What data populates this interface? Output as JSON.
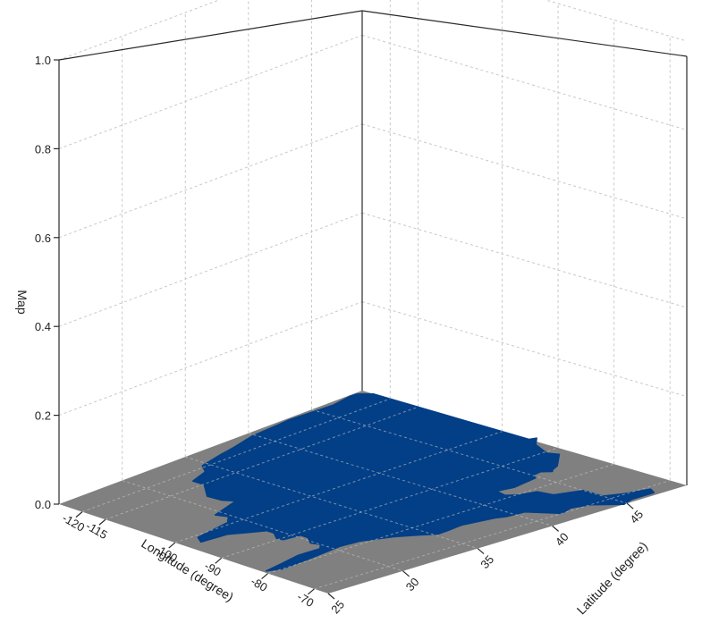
{
  "chart_data": {
    "type": "surface3d",
    "title": "",
    "xlabel": "Longitude (degree)",
    "ylabel": "Latitude (degree)",
    "zlabel": "Map",
    "x_ticks": [
      "-120",
      "-115",
      "-100",
      "-90",
      "-80",
      "-70"
    ],
    "y_ticks": [
      "25",
      "30",
      "35",
      "40",
      "45"
    ],
    "z_ticks": [
      "0.0",
      "0.2",
      "0.4",
      "0.6",
      "0.8",
      "1.0"
    ],
    "xlim": [
      -125,
      -67
    ],
    "ylim": [
      25,
      49
    ],
    "zlim": [
      0,
      1
    ],
    "z_value": 0,
    "region": "Contiguous United States",
    "colors": {
      "land": "#033f86",
      "base": "#808080",
      "grid": "#c8c8c8"
    },
    "outline": [
      [
        -124.6,
        48.4
      ],
      [
        -123.0,
        49.0
      ],
      [
        -95.2,
        49.0
      ],
      [
        -94.8,
        49.4
      ],
      [
        -93.0,
        48.6
      ],
      [
        -89.5,
        48.0
      ],
      [
        -88.0,
        48.3
      ],
      [
        -84.8,
        46.9
      ],
      [
        -84.1,
        46.3
      ],
      [
        -83.6,
        46.1
      ],
      [
        -84.6,
        45.7
      ],
      [
        -85.6,
        45.0
      ],
      [
        -86.4,
        44.4
      ],
      [
        -86.2,
        43.0
      ],
      [
        -86.6,
        41.8
      ],
      [
        -87.5,
        41.7
      ],
      [
        -87.9,
        43.0
      ],
      [
        -87.6,
        44.5
      ],
      [
        -87.0,
        45.5
      ],
      [
        -86.0,
        45.9
      ],
      [
        -85.0,
        46.1
      ],
      [
        -84.7,
        45.8
      ],
      [
        -84.4,
        45.1
      ],
      [
        -83.3,
        44.8
      ],
      [
        -82.5,
        43.0
      ],
      [
        -83.1,
        42.0
      ],
      [
        -81.0,
        41.8
      ],
      [
        -79.8,
        42.3
      ],
      [
        -79.0,
        43.3
      ],
      [
        -76.5,
        43.5
      ],
      [
        -75.0,
        45.0
      ],
      [
        -71.5,
        45.0
      ],
      [
        -70.3,
        45.9
      ],
      [
        -69.2,
        47.4
      ],
      [
        -67.8,
        47.1
      ],
      [
        -67.8,
        45.6
      ],
      [
        -67.0,
        44.8
      ],
      [
        -70.0,
        43.6
      ],
      [
        -70.8,
        42.6
      ],
      [
        -70.0,
        41.7
      ],
      [
        -71.5,
        41.3
      ],
      [
        -74.0,
        40.6
      ],
      [
        -74.3,
        39.5
      ],
      [
        -75.0,
        38.9
      ],
      [
        -76.0,
        37.0
      ],
      [
        -75.6,
        35.9
      ],
      [
        -75.5,
        35.2
      ],
      [
        -77.0,
        34.5
      ],
      [
        -79.0,
        33.4
      ],
      [
        -81.0,
        31.8
      ],
      [
        -81.4,
        30.5
      ],
      [
        -80.5,
        28.0
      ],
      [
        -80.0,
        26.0
      ],
      [
        -81.0,
        25.2
      ],
      [
        -81.8,
        26.5
      ],
      [
        -82.8,
        28.0
      ],
      [
        -82.7,
        29.5
      ],
      [
        -84.0,
        30.0
      ],
      [
        -85.5,
        29.8
      ],
      [
        -87.5,
        30.3
      ],
      [
        -89.0,
        30.3
      ],
      [
        -89.4,
        29.2
      ],
      [
        -90.5,
        29.1
      ],
      [
        -92.5,
        29.6
      ],
      [
        -94.0,
        29.6
      ],
      [
        -95.3,
        28.8
      ],
      [
        -97.0,
        27.8
      ],
      [
        -97.4,
        26.0
      ],
      [
        -99.2,
        26.4
      ],
      [
        -100.7,
        29.1
      ],
      [
        -102.5,
        29.8
      ],
      [
        -104.4,
        29.5
      ],
      [
        -106.5,
        31.8
      ],
      [
        -108.2,
        31.4
      ],
      [
        -111.0,
        31.3
      ],
      [
        -114.8,
        32.5
      ],
      [
        -117.1,
        32.5
      ],
      [
        -118.5,
        34.0
      ],
      [
        -120.6,
        34.6
      ],
      [
        -121.9,
        36.6
      ],
      [
        -122.5,
        37.8
      ],
      [
        -123.8,
        39.8
      ],
      [
        -124.2,
        41.9
      ],
      [
        -124.5,
        43.0
      ],
      [
        -124.0,
        46.3
      ],
      [
        -124.7,
        47.9
      ]
    ]
  }
}
